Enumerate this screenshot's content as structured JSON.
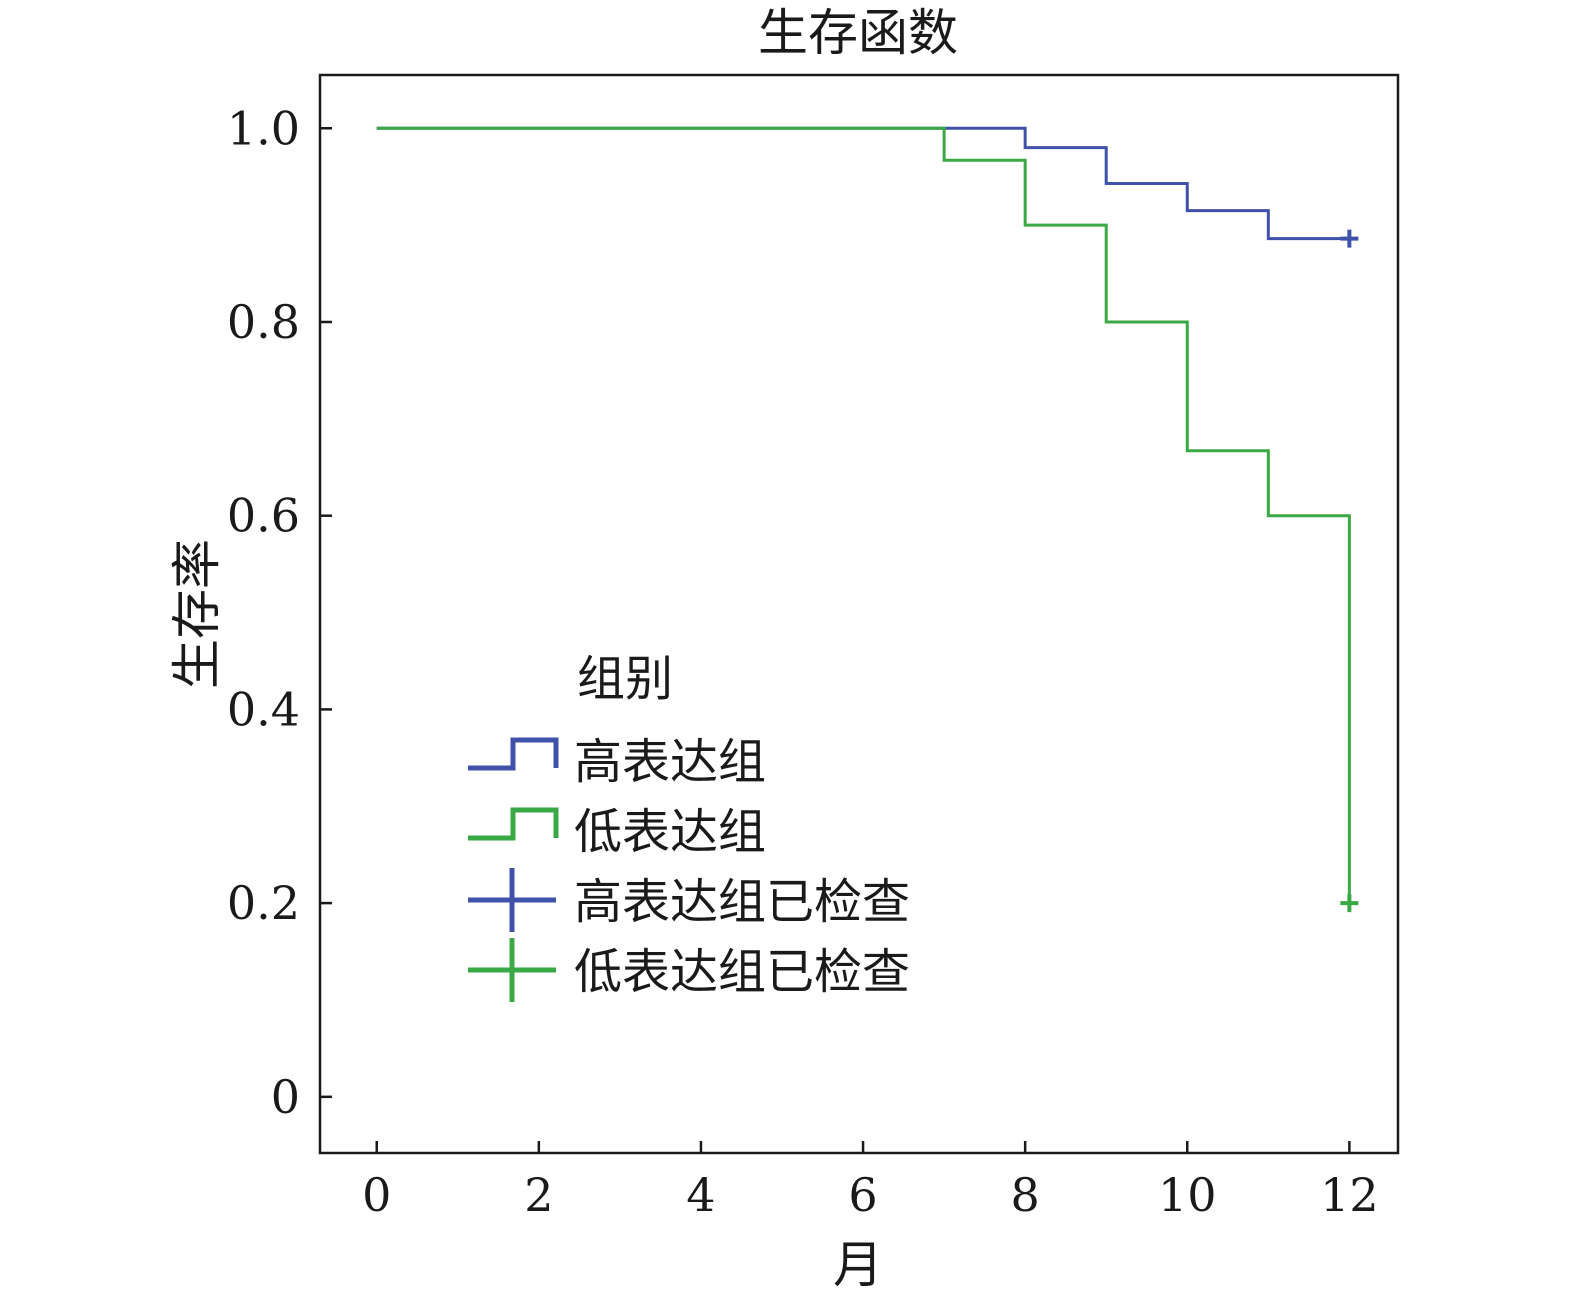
{
  "chart_data": {
    "type": "line",
    "subtype": "kaplan-meier-step",
    "title": "生存函数",
    "xlabel": "月",
    "ylabel": "生存率",
    "xlim": [
      -0.7,
      12.6
    ],
    "ylim": [
      -0.058,
      1.055
    ],
    "xticks": [
      0,
      2,
      4,
      6,
      8,
      10,
      12
    ],
    "xtick_labels": [
      "0",
      "2",
      "4",
      "6",
      "8",
      "10",
      "12"
    ],
    "yticks": [
      0,
      0.2,
      0.4,
      0.6,
      0.8,
      1.0
    ],
    "ytick_labels": [
      "0",
      "0.2",
      "0.4",
      "0.6",
      "0.8",
      "1.0"
    ],
    "grid": false,
    "legend": {
      "title": "组别",
      "placement": "center-left",
      "entries": [
        {
          "label": "高表达组",
          "kind": "step",
          "series": 0
        },
        {
          "label": "低表达组",
          "kind": "step",
          "series": 1
        },
        {
          "label": "高表达组已检查",
          "kind": "censor",
          "series": 0
        },
        {
          "label": "低表达组已检查",
          "kind": "censor",
          "series": 1
        }
      ]
    },
    "series": [
      {
        "name": "高表达组",
        "color": "#3f51a8",
        "x": [
          0,
          8,
          9,
          10,
          11,
          12
        ],
        "y": [
          1.0,
          0.98,
          0.943,
          0.915,
          0.886,
          0.886
        ],
        "censored": [
          {
            "x": 12,
            "y": 0.886
          }
        ]
      },
      {
        "name": "低表达组",
        "color": "#3aa844",
        "x": [
          0,
          7,
          8,
          9,
          10,
          11,
          12
        ],
        "y": [
          1.0,
          0.967,
          0.9,
          0.8,
          0.667,
          0.6,
          0.2
        ],
        "censored": [
          {
            "x": 12,
            "y": 0.2
          }
        ]
      }
    ]
  }
}
